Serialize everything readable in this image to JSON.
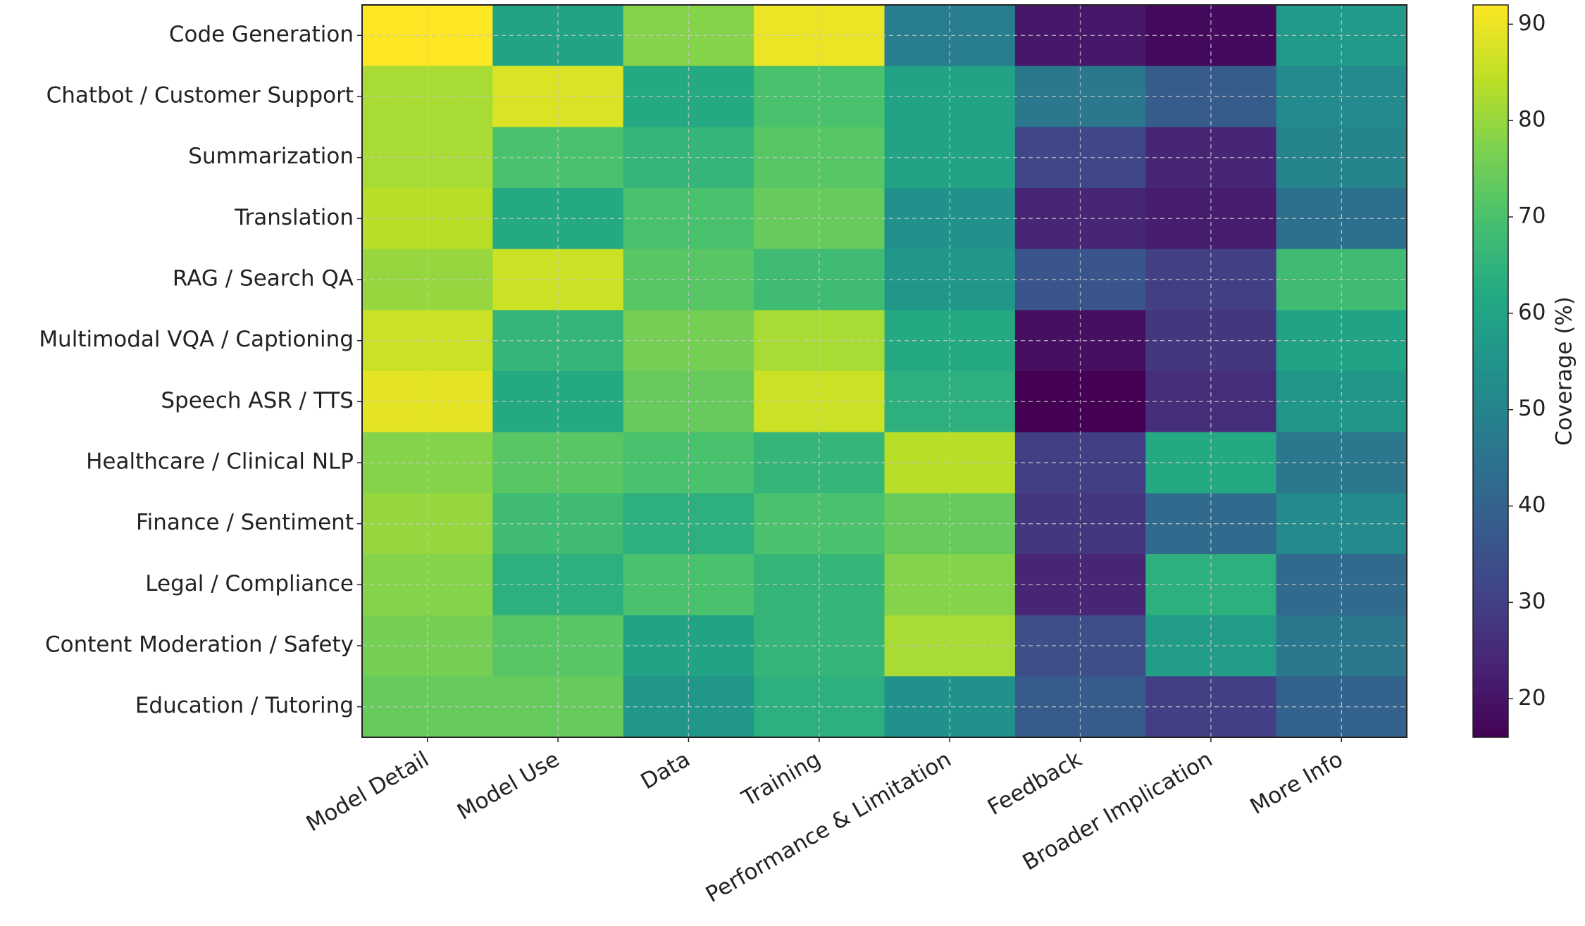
{
  "chart_data": {
    "type": "heatmap",
    "x_categories": [
      "Model Detail",
      "Model Use",
      "Data",
      "Training",
      "Performance & Limitation",
      "Feedback",
      "Broader Implication",
      "More Info"
    ],
    "y_categories": [
      "Code Generation",
      "Chatbot / Customer Support",
      "Summarization",
      "Translation",
      "RAG / Search QA",
      "Multimodal VQA / Captioning",
      "Speech ASR / TTS",
      "Healthcare / Clinical NLP",
      "Finance / Sentiment",
      "Legal / Compliance",
      "Content Moderation / Safety",
      "Education / Tutoring"
    ],
    "values": [
      [
        92,
        60,
        78,
        90,
        48,
        21,
        18,
        57
      ],
      [
        82,
        88,
        62,
        70,
        60,
        46,
        38,
        52
      ],
      [
        82,
        70,
        66,
        72,
        60,
        32,
        24,
        50
      ],
      [
        84,
        62,
        70,
        74,
        54,
        24,
        22,
        44
      ],
      [
        80,
        86,
        72,
        68,
        56,
        36,
        30,
        68
      ],
      [
        86,
        66,
        76,
        82,
        62,
        19,
        28,
        60
      ],
      [
        89,
        62,
        74,
        86,
        64,
        16,
        26,
        56
      ],
      [
        78,
        72,
        70,
        66,
        84,
        30,
        62,
        46
      ],
      [
        80,
        68,
        64,
        70,
        74,
        28,
        42,
        52
      ],
      [
        78,
        64,
        70,
        66,
        78,
        24,
        64,
        42
      ],
      [
        76,
        72,
        60,
        66,
        82,
        34,
        58,
        46
      ],
      [
        74,
        74,
        56,
        64,
        54,
        38,
        30,
        40
      ]
    ],
    "colormap": "viridis",
    "clim": [
      16,
      92
    ],
    "colorbar_ticks": [
      20,
      30,
      40,
      50,
      60,
      70,
      80,
      90
    ],
    "colorbar_label": "Coverage (%)",
    "grid": true
  }
}
